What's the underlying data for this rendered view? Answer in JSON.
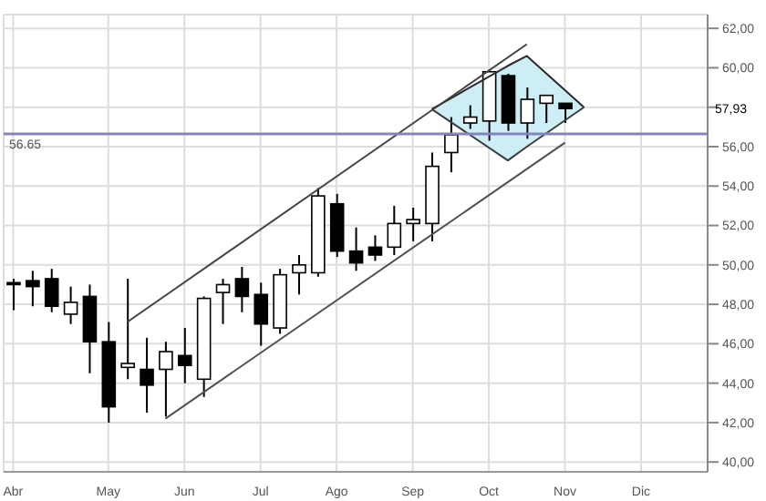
{
  "chart_data": {
    "type": "candlestick",
    "categories": [
      "Abr",
      null,
      null,
      null,
      null,
      "May",
      null,
      null,
      null,
      "Jun",
      null,
      null,
      null,
      "Jul",
      null,
      null,
      null,
      "Ago",
      null,
      null,
      null,
      "Sep",
      null,
      null,
      null,
      "Oct",
      null,
      null,
      null,
      "Nov",
      null,
      null,
      null,
      "Dic",
      null,
      null,
      null
    ],
    "ohlc": [
      [
        49.1,
        49.3,
        47.7,
        49.0
      ],
      [
        49.2,
        49.7,
        47.9,
        48.9
      ],
      [
        49.3,
        49.8,
        47.6,
        47.9
      ],
      [
        47.5,
        48.9,
        47.0,
        48.1
      ],
      [
        48.4,
        49.0,
        44.5,
        46.1
      ],
      [
        46.1,
        47.1,
        42.0,
        42.8
      ],
      [
        44.8,
        49.3,
        44.2,
        45.0
      ],
      [
        44.7,
        46.3,
        42.5,
        43.9
      ],
      [
        44.7,
        46.1,
        42.3,
        45.6
      ],
      [
        45.4,
        46.8,
        44.0,
        44.9
      ],
      [
        44.2,
        48.4,
        43.3,
        48.3
      ],
      [
        48.6,
        49.3,
        47.0,
        49.0
      ],
      [
        49.3,
        49.9,
        47.6,
        48.4
      ],
      [
        48.5,
        49.1,
        45.9,
        47.0
      ],
      [
        46.8,
        49.8,
        46.5,
        49.5
      ],
      [
        49.6,
        50.5,
        48.5,
        50.0
      ],
      [
        49.6,
        53.9,
        49.4,
        53.5
      ],
      [
        53.1,
        53.6,
        50.4,
        50.7
      ],
      [
        50.7,
        51.9,
        49.7,
        50.1
      ],
      [
        50.9,
        51.5,
        50.2,
        50.5
      ],
      [
        50.9,
        53.0,
        50.5,
        52.1
      ],
      [
        52.1,
        52.9,
        51.2,
        52.3
      ],
      [
        52.1,
        55.7,
        51.2,
        55.0
      ],
      [
        55.7,
        57.5,
        54.7,
        56.6
      ],
      [
        57.2,
        58.1,
        56.9,
        57.5
      ],
      [
        57.3,
        59.9,
        56.3,
        59.8
      ],
      [
        59.6,
        59.7,
        56.8,
        57.2
      ],
      [
        57.2,
        59.0,
        56.4,
        58.4
      ],
      [
        58.2,
        58.6,
        57.2,
        58.6
      ],
      [
        58.2,
        58.2,
        57.2,
        57.93
      ],
      null,
      null,
      null,
      null,
      null,
      null,
      null
    ],
    "series": [
      {
        "type": "line",
        "color": "#2a2a2a",
        "values": [
          null,
          null,
          null,
          null,
          null,
          null,
          null,
          null,
          null,
          null,
          null,
          null,
          null,
          null,
          null,
          null,
          null,
          null,
          null,
          null,
          null,
          null,
          57.9,
          null,
          null,
          null,
          60.1,
          60.6,
          null,
          null,
          58.0,
          null,
          null,
          null,
          null,
          null,
          null
        ]
      },
      {
        "type": "line",
        "color": "#3c3c3c",
        "values": [
          null,
          null,
          null,
          null,
          null,
          null,
          null,
          null,
          null,
          null,
          null,
          null,
          null,
          null,
          null,
          null,
          null,
          null,
          null,
          null,
          null,
          null,
          57.9,
          null,
          null,
          null,
          55.3,
          56.0,
          null,
          null,
          58.0,
          null,
          null,
          null,
          null,
          null,
          null
        ]
      },
      {
        "type": "line",
        "color": "#444444",
        "values": [
          null,
          null,
          null,
          null,
          null,
          null,
          47.1,
          null,
          null,
          null,
          null,
          null,
          null,
          null,
          null,
          null,
          null,
          null,
          null,
          null,
          null,
          null,
          null,
          null,
          null,
          null,
          null,
          61.2,
          null,
          null,
          null,
          null,
          null,
          null,
          null,
          null,
          null
        ]
      },
      {
        "type": "line",
        "color": "#505050",
        "values": [
          null,
          null,
          null,
          null,
          null,
          null,
          null,
          null,
          42.2,
          null,
          null,
          null,
          null,
          null,
          null,
          null,
          null,
          null,
          null,
          null,
          null,
          null,
          null,
          null,
          null,
          null,
          null,
          null,
          null,
          56.2,
          null,
          null,
          null,
          null,
          null,
          null,
          null
        ]
      }
    ],
    "ylim": [
      39.5,
      62.7
    ],
    "yticks": [
      {
        "value": 40,
        "label": "40,00"
      },
      {
        "value": 42,
        "label": "42,00"
      },
      {
        "value": 44,
        "label": "44,00"
      },
      {
        "value": 46,
        "label": "46,00"
      },
      {
        "value": 48,
        "label": "48,00"
      },
      {
        "value": 50,
        "label": "50,00"
      },
      {
        "value": 52,
        "label": "52,00"
      },
      {
        "value": 54,
        "label": "54,00"
      },
      {
        "value": 56,
        "label": "56,00"
      },
      {
        "value": 58,
        "label": null
      },
      {
        "value": 60,
        "label": "60,00"
      },
      {
        "value": 62,
        "label": "62,00"
      }
    ],
    "ref_lines": [
      {
        "axis": "y",
        "value": 56.65,
        "label": "56.65",
        "color": "#8484c0"
      }
    ],
    "annotations": [
      "57,93"
    ],
    "grid": true,
    "marker": "none",
    "line_style": "solid"
  }
}
